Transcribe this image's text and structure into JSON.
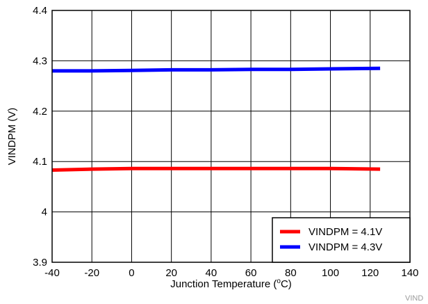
{
  "chart_data": {
    "type": "line",
    "title": "",
    "xlabel": "Junction Temperature (",
    "xlabel_superscript": "o",
    "xlabel_suffix": "C)",
    "ylabel": "VINDPM (V)",
    "xlim": [
      -40,
      140
    ],
    "ylim": [
      3.9,
      4.4
    ],
    "x_ticks": [
      -40,
      -20,
      0,
      20,
      40,
      60,
      80,
      100,
      120,
      140
    ],
    "x_tick_labels": [
      "-40",
      "-20",
      "0",
      "20",
      "40",
      "60",
      "80",
      "100",
      "120",
      "140"
    ],
    "y_ticks": [
      3.9,
      4.0,
      4.1,
      4.2,
      4.3,
      4.4
    ],
    "y_tick_labels": [
      "3.9",
      "4",
      "4.1",
      "4.2",
      "4.3",
      "4.4"
    ],
    "grid": true,
    "legend_position": "bottom-right",
    "series": [
      {
        "name": "VINDPM = 4.1V",
        "color": "#ff0000",
        "x": [
          -40,
          -20,
          0,
          20,
          40,
          60,
          80,
          100,
          125
        ],
        "values": [
          4.083,
          4.085,
          4.086,
          4.086,
          4.086,
          4.086,
          4.086,
          4.086,
          4.085
        ]
      },
      {
        "name": "VINDPM = 4.3V",
        "color": "#0000ff",
        "x": [
          -40,
          -20,
          0,
          20,
          40,
          60,
          80,
          100,
          125
        ],
        "values": [
          4.28,
          4.28,
          4.281,
          4.282,
          4.282,
          4.283,
          4.283,
          4.284,
          4.285
        ]
      }
    ]
  },
  "corner_tag": "VIND"
}
